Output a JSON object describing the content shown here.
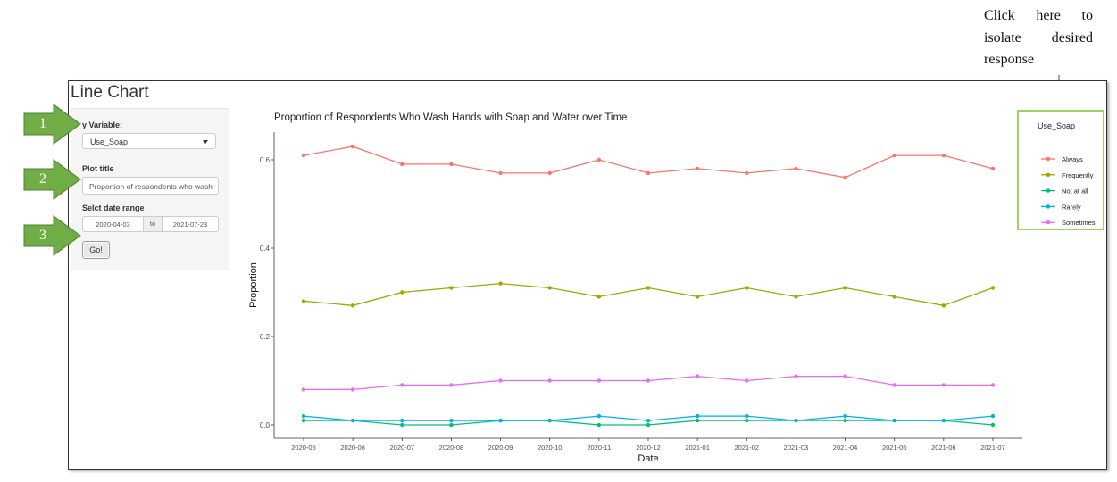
{
  "annotation": {
    "note": "Click here to isolate desired response",
    "callouts": [
      "1",
      "2",
      "3"
    ]
  },
  "app": {
    "title": "Line Chart",
    "y_variable_label": "y Variable:",
    "y_variable_value": "Use_Soap",
    "plot_title_label": "Plot title",
    "plot_title_value": "Proportion of respondents who wash",
    "date_range_label": "Selct date range",
    "date_start": "2020-04-03",
    "date_sep": "to",
    "date_end": "2021-07-23",
    "go_label": "Go!"
  },
  "colors": {
    "Always": "#F8766D",
    "Frequently": "#A3A500",
    "Not at all": "#00BF7D",
    "Rarely": "#00B0F6",
    "Sometimes": "#E76BF3",
    "callout": "#70AD47",
    "highlight": "#92D050"
  },
  "chart_data": {
    "type": "line",
    "title": "Proportion of Respondents Who Wash Hands with Soap and Water over Time",
    "xlabel": "Date",
    "ylabel": "Proportion",
    "x": [
      "2020-05",
      "2020-06",
      "2020-07",
      "2020-08",
      "2020-09",
      "2020-10",
      "2020-11",
      "2020-12",
      "2021-01",
      "2021-02",
      "2021-03",
      "2021-04",
      "2021-05",
      "2021-06",
      "2021-07"
    ],
    "yticks": [
      "0.0",
      "0.2",
      "0.4",
      "0.6"
    ],
    "ylim": [
      0,
      0.6
    ],
    "legend_title": "Use_Soap",
    "legend_position": "right",
    "series": [
      {
        "name": "Always",
        "values": [
          0.61,
          0.63,
          0.59,
          0.59,
          0.57,
          0.57,
          0.6,
          0.57,
          0.58,
          0.57,
          0.58,
          0.56,
          0.61,
          0.61,
          0.58
        ]
      },
      {
        "name": "Frequently",
        "values": [
          0.28,
          0.27,
          0.3,
          0.31,
          0.32,
          0.31,
          0.29,
          0.31,
          0.29,
          0.31,
          0.29,
          0.31,
          0.29,
          0.27,
          0.31
        ]
      },
      {
        "name": "Not at all",
        "values": [
          0.01,
          0.01,
          0.0,
          0.0,
          0.01,
          0.01,
          0.0,
          0.0,
          0.01,
          0.01,
          0.01,
          0.01,
          0.01,
          0.01,
          0.0
        ]
      },
      {
        "name": "Rarely",
        "values": [
          0.02,
          0.01,
          0.01,
          0.01,
          0.01,
          0.01,
          0.02,
          0.01,
          0.02,
          0.02,
          0.01,
          0.02,
          0.01,
          0.01,
          0.02
        ]
      },
      {
        "name": "Sometimes",
        "values": [
          0.08,
          0.08,
          0.09,
          0.09,
          0.1,
          0.1,
          0.1,
          0.1,
          0.11,
          0.1,
          0.11,
          0.11,
          0.09,
          0.09,
          0.09
        ]
      }
    ]
  }
}
